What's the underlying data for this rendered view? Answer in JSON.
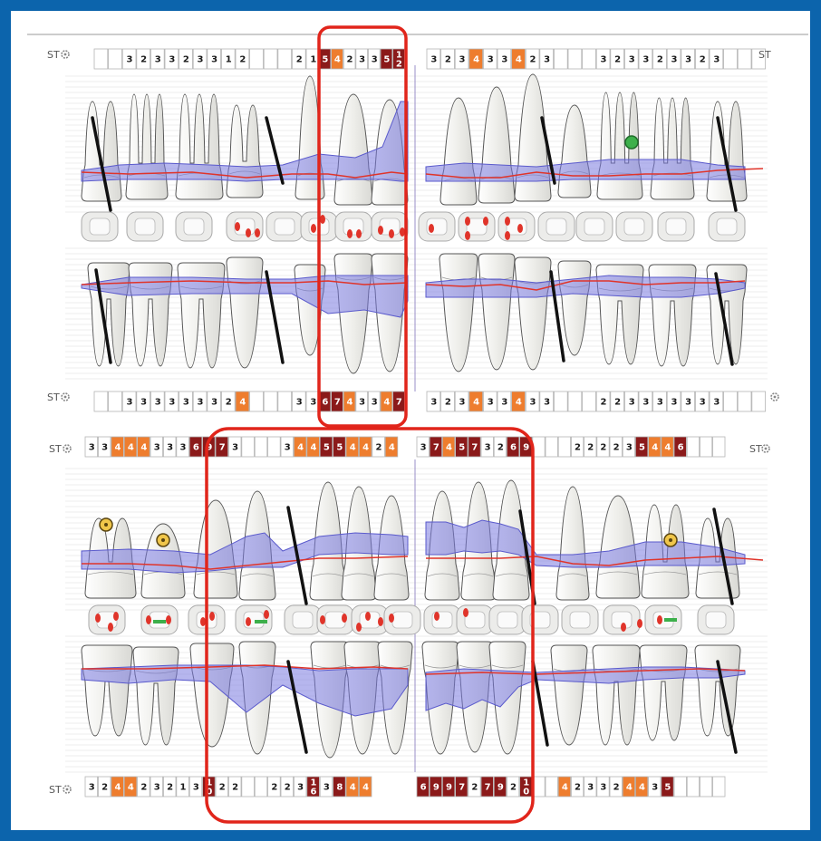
{
  "labels": {
    "st": "ST"
  },
  "colors": {
    "frame": "#0c64ac",
    "moderate": "#ee7d2e",
    "severe": "#8b1a1a",
    "shallow": "#ffffff",
    "gum": "#7a7ae0",
    "gumline": "#e0342a",
    "highlight": "#e1251b",
    "tooth": "#f2f2ee",
    "toothStroke": "#555555",
    "implant": "#111111",
    "marker_green": "#3db04b",
    "marker_yellow": "#f0c64a"
  },
  "arches": [
    {
      "name": "upper-arch",
      "rows": [
        {
          "name": "upper-buccal-probing",
          "groups": [
            {
              "values": [
                "",
                "",
                "3",
                "2",
                "3",
                "3",
                "2",
                "3",
                "3",
                "1",
                "2",
                "",
                "",
                "",
                "2",
                "1"
              ]
            },
            {
              "values": [
                "5",
                "4",
                "2",
                "3",
                "3",
                "5",
                "12"
              ]
            },
            {
              "values": [
                "3",
                "2",
                "3",
                "4",
                "3",
                "3",
                "4",
                "2",
                "3",
                "",
                "",
                "",
                "3",
                "2",
                "3",
                "3",
                "2",
                "3",
                "3",
                "2",
                "3",
                "",
                "",
                ""
              ]
            }
          ]
        },
        {
          "name": "upper-lingual-probing",
          "groups": [
            {
              "values": [
                "",
                "",
                "3",
                "3",
                "3",
                "3",
                "3",
                "3",
                "3",
                "2",
                "4",
                "",
                "",
                "",
                "3",
                "3"
              ]
            },
            {
              "values": [
                "6",
                "7",
                "4",
                "3",
                "3",
                "4",
                "7"
              ]
            },
            {
              "values": [
                "3",
                "2",
                "3",
                "4",
                "3",
                "3",
                "4",
                "3",
                "3",
                "",
                "",
                "",
                "2",
                "2",
                "3",
                "3",
                "3",
                "3",
                "3",
                "3",
                "3",
                "",
                "",
                ""
              ]
            }
          ]
        }
      ]
    },
    {
      "name": "lower-arch",
      "rows": [
        {
          "name": "lower-lingual-probing",
          "groups": [
            {
              "values": [
                "3",
                "3",
                "4",
                "4",
                "4",
                "3",
                "3",
                "3",
                "6",
                "9",
                "7",
                "3",
                "",
                "",
                "",
                "3",
                "4",
                "4",
                "5",
                "5",
                "4",
                "4",
                "2",
                "4"
              ]
            },
            {
              "values": [
                "3",
                "7",
                "4",
                "5",
                "7",
                "3",
                "2",
                "6",
                "9",
                "",
                "",
                "",
                "2",
                "2",
                "2",
                "2",
                "3",
                "5",
                "4",
                "4",
                "6",
                "",
                "",
                ""
              ]
            }
          ]
        },
        {
          "name": "lower-buccal-probing",
          "groups": [
            {
              "values": [
                "3",
                "2",
                "4",
                "4",
                "2",
                "3",
                "2",
                "1",
                "3",
                "10",
                "2",
                "2",
                "",
                "",
                "2",
                "2",
                "3",
                "16",
                "3",
                "8",
                "4",
                "4"
              ]
            },
            {
              "values": [
                "6",
                "9",
                "9",
                "7",
                "2",
                "7",
                "9",
                "2",
                "10",
                "",
                "",
                "4",
                "2",
                "3",
                "3",
                "2",
                "4",
                "4",
                "3",
                "5",
                "",
                "",
                "",
                ""
              ]
            }
          ]
        }
      ]
    }
  ]
}
